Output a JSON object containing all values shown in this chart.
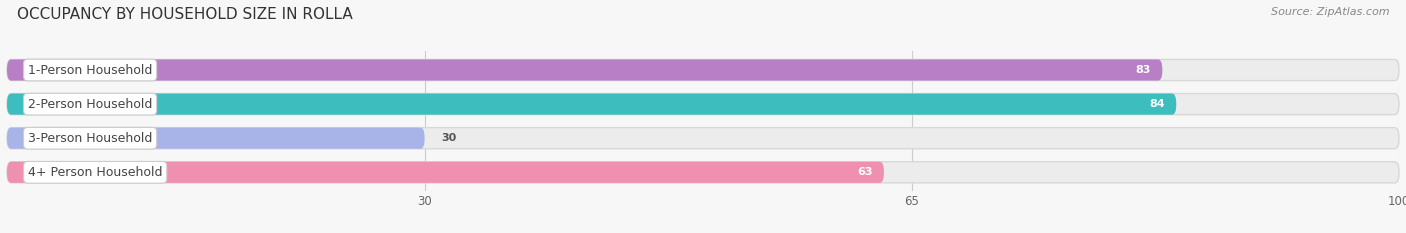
{
  "title": "OCCUPANCY BY HOUSEHOLD SIZE IN ROLLA",
  "source": "Source: ZipAtlas.com",
  "categories": [
    "1-Person Household",
    "2-Person Household",
    "3-Person Household",
    "4+ Person Household"
  ],
  "values": [
    83,
    84,
    30,
    63
  ],
  "bar_colors": [
    "#b87fc7",
    "#3dbdbd",
    "#a8b4e8",
    "#f090b0"
  ],
  "xlim": [
    0,
    100
  ],
  "xticks": [
    30,
    65,
    100
  ],
  "title_fontsize": 11,
  "source_fontsize": 8,
  "label_fontsize": 9,
  "value_fontsize": 8,
  "bar_height": 0.62,
  "bar_gap": 0.2,
  "background_color": "#f7f7f7"
}
